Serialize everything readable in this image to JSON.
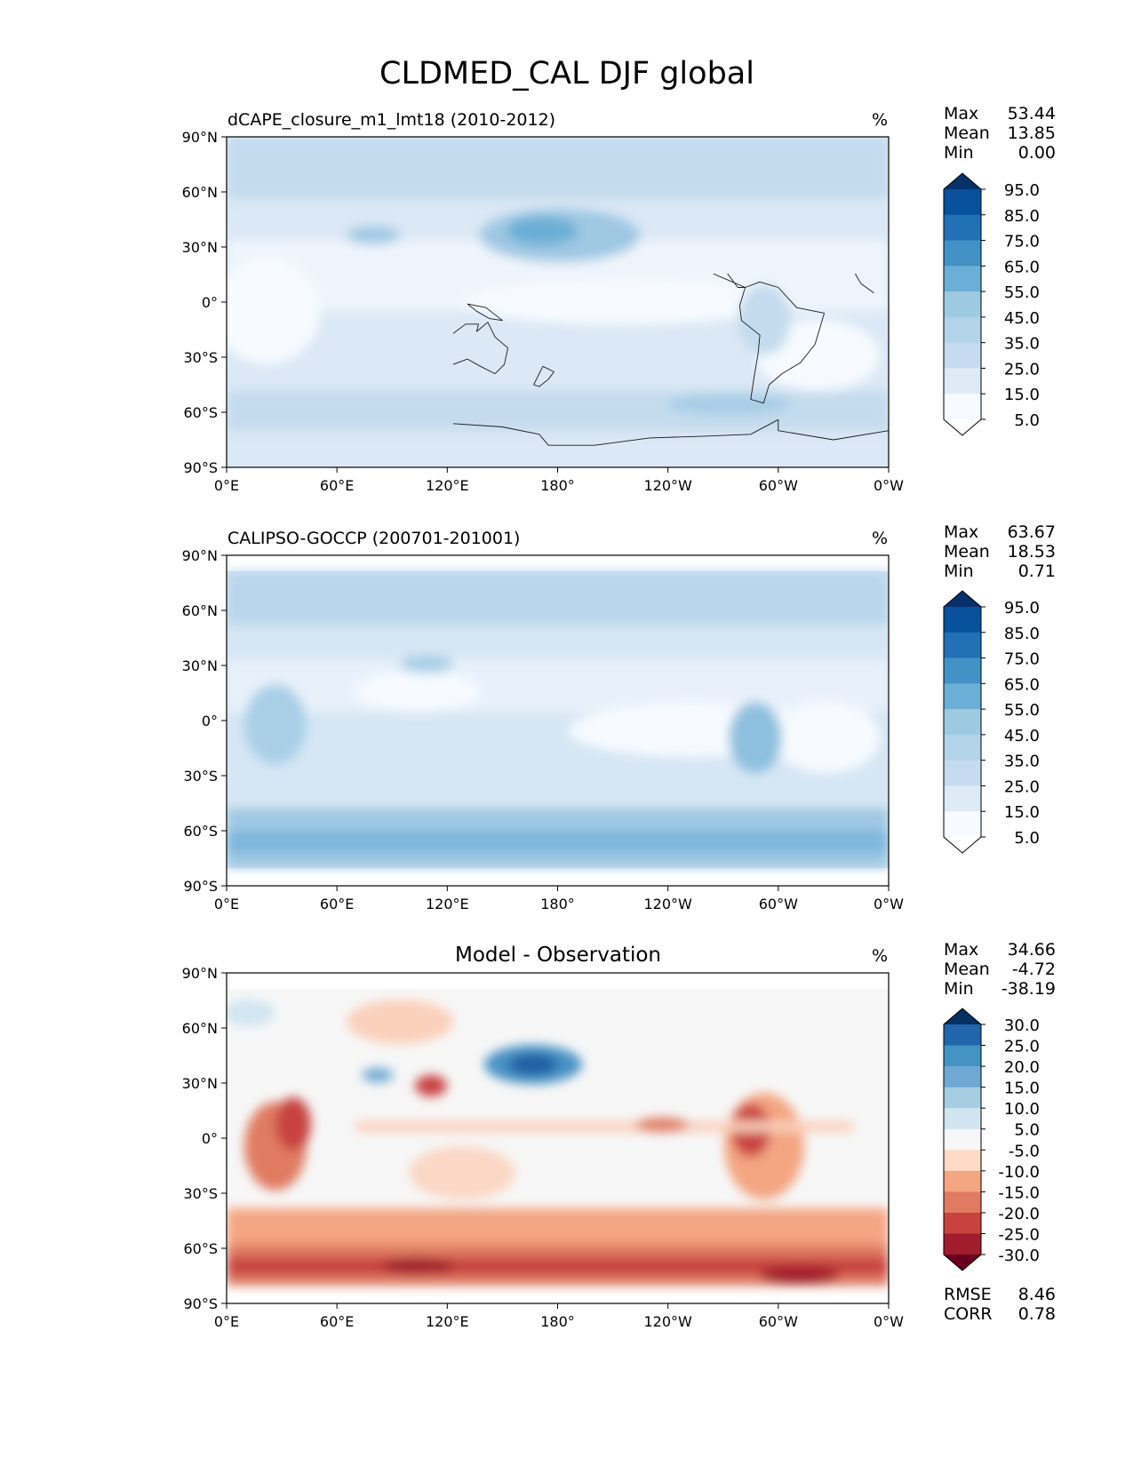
{
  "figure": {
    "title": "CLDMED_CAL DJF global"
  },
  "axes": {
    "lat_ticks": [
      "90°N",
      "60°N",
      "30°N",
      "0°",
      "30°S",
      "60°S",
      "90°S"
    ],
    "lon_ticks": [
      "0°E",
      "60°E",
      "120°E",
      "180°",
      "120°W",
      "60°W",
      "0°W"
    ]
  },
  "panels": [
    {
      "title": "dCAPE_closure_m1_lmt18 (2010-2012)",
      "units": "%",
      "stats": [
        {
          "label": "Max",
          "value": "53.44"
        },
        {
          "label": "Mean",
          "value": "13.85"
        },
        {
          "label": "Min",
          "value": "0.00"
        }
      ],
      "colorbar": {
        "labels": [
          "95.0",
          "85.0",
          "75.0",
          "65.0",
          "55.0",
          "45.0",
          "35.0",
          "25.0",
          "15.0",
          "5.0"
        ],
        "colors": [
          "#08306b",
          "#08519c",
          "#2171b5",
          "#4292c6",
          "#6baed6",
          "#9ecae1",
          "#b3d3e8",
          "#c6dbef",
          "#deebf7",
          "#f7fbff",
          "#ffffff"
        ]
      }
    },
    {
      "title": "CALIPSO-GOCCP (200701-201001)",
      "units": "%",
      "stats": [
        {
          "label": "Max",
          "value": "63.67"
        },
        {
          "label": "Mean",
          "value": "18.53"
        },
        {
          "label": "Min",
          "value": "0.71"
        }
      ],
      "colorbar": {
        "labels": [
          "95.0",
          "85.0",
          "75.0",
          "65.0",
          "55.0",
          "45.0",
          "35.0",
          "25.0",
          "15.0",
          "5.0"
        ],
        "colors": [
          "#08306b",
          "#08519c",
          "#2171b5",
          "#4292c6",
          "#6baed6",
          "#9ecae1",
          "#b3d3e8",
          "#c6dbef",
          "#deebf7",
          "#f7fbff",
          "#ffffff"
        ]
      }
    },
    {
      "title": "Model - Observation",
      "units": "%",
      "stats": [
        {
          "label": "Max",
          "value": "34.66"
        },
        {
          "label": "Mean",
          "value": "-4.72"
        },
        {
          "label": "Min",
          "value": "-38.19"
        }
      ],
      "colorbar": {
        "labels": [
          "30.0",
          "25.0",
          "20.0",
          "15.0",
          "10.0",
          "5.0",
          "-5.0",
          "-10.0",
          "-15.0",
          "-20.0",
          "-25.0",
          "-30.0"
        ],
        "colors": [
          "#053061",
          "#2166ac",
          "#4393c3",
          "#6fa8d3",
          "#a6cde2",
          "#d1e5f0",
          "#f7f7f7",
          "#fddbc7",
          "#f4a582",
          "#e07b62",
          "#c8433f",
          "#a11c2c",
          "#67001f"
        ]
      },
      "metrics": [
        {
          "label": "RMSE",
          "value": "8.46"
        },
        {
          "label": "CORR",
          "value": "0.78"
        }
      ]
    }
  ]
}
